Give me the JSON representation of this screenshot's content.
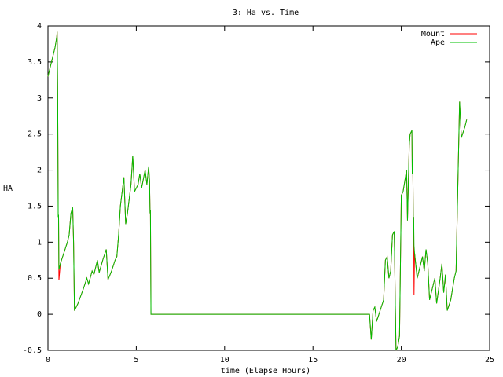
{
  "chart_data": {
    "type": "line",
    "title": "3: Ha vs. Time",
    "xlabel": "time (Elapse Hours)",
    "ylabel": "HA",
    "x": [
      0,
      0.2,
      0.4,
      0.5,
      0.52,
      0.55,
      0.58,
      0.6,
      0.62,
      0.7,
      0.9,
      1.1,
      1.2,
      1.3,
      1.4,
      1.45,
      1.5,
      1.7,
      2.0,
      2.2,
      2.3,
      2.5,
      2.6,
      2.8,
      2.9,
      3.1,
      3.3,
      3.4,
      3.6,
      3.8,
      3.9,
      4.0,
      4.1,
      4.3,
      4.4,
      4.5,
      4.7,
      4.8,
      4.9,
      5.1,
      5.2,
      5.3,
      5.5,
      5.6,
      5.7,
      5.75,
      5.78,
      5.8,
      5.83,
      18.2,
      18.3,
      18.4,
      18.5,
      18.6,
      18.8,
      19.0,
      19.1,
      19.2,
      19.3,
      19.4,
      19.5,
      19.6,
      19.7,
      19.8,
      19.9,
      20.0,
      20.1,
      20.3,
      20.35,
      20.45,
      20.5,
      20.6,
      20.62,
      20.65,
      20.68,
      20.7,
      20.72,
      20.75,
      20.9,
      21.1,
      21.2,
      21.3,
      21.4,
      21.5,
      21.6,
      21.8,
      21.9,
      22.0,
      22.2,
      22.3,
      22.4,
      22.5,
      22.6,
      22.8,
      22.9,
      23.0,
      23.1,
      23.3,
      23.4,
      23.6,
      23.7
    ],
    "series": [
      {
        "name": "Mount",
        "color": "#ff0000",
        "values": [
          3.3,
          3.5,
          3.7,
          3.85,
          3.92,
          3.05,
          1.35,
          1.38,
          0.47,
          0.7,
          0.85,
          1.0,
          1.1,
          1.4,
          1.48,
          1.0,
          0.05,
          0.15,
          0.35,
          0.5,
          0.42,
          0.6,
          0.55,
          0.75,
          0.58,
          0.75,
          0.9,
          0.48,
          0.6,
          0.75,
          0.8,
          1.1,
          1.5,
          1.9,
          1.25,
          1.4,
          1.8,
          2.2,
          1.7,
          1.8,
          1.95,
          1.75,
          2.0,
          1.8,
          2.05,
          1.85,
          1.4,
          1.45,
          0,
          0,
          -0.35,
          0.05,
          0.1,
          -0.1,
          0.05,
          0.2,
          0.75,
          0.8,
          0.5,
          0.6,
          1.1,
          1.15,
          -0.5,
          -0.45,
          -0.3,
          1.65,
          1.7,
          2.0,
          1.3,
          2.35,
          2.5,
          2.55,
          1.95,
          2.15,
          1.3,
          1.35,
          0.27,
          0.85,
          0.5,
          0.7,
          0.8,
          0.6,
          0.9,
          0.7,
          0.2,
          0.4,
          0.5,
          0.15,
          0.5,
          0.7,
          0.3,
          0.55,
          0.05,
          0.2,
          0.35,
          0.5,
          0.6,
          2.95,
          2.45,
          2.6,
          2.7
        ]
      },
      {
        "name": "Ape",
        "color": "#00c000",
        "values": [
          3.3,
          3.5,
          3.7,
          3.85,
          3.92,
          3.05,
          1.35,
          1.38,
          0.62,
          0.7,
          0.85,
          1.0,
          1.1,
          1.4,
          1.48,
          1.0,
          0.05,
          0.15,
          0.35,
          0.5,
          0.42,
          0.6,
          0.55,
          0.75,
          0.58,
          0.75,
          0.9,
          0.48,
          0.6,
          0.75,
          0.8,
          1.1,
          1.5,
          1.9,
          1.25,
          1.4,
          1.8,
          2.2,
          1.7,
          1.8,
          1.95,
          1.75,
          2.0,
          1.8,
          2.05,
          1.85,
          1.4,
          1.45,
          0,
          0,
          -0.35,
          0.05,
          0.1,
          -0.1,
          0.05,
          0.2,
          0.75,
          0.8,
          0.5,
          0.6,
          1.1,
          1.15,
          -0.5,
          -0.45,
          -0.3,
          1.65,
          1.7,
          2.0,
          1.3,
          2.35,
          2.5,
          2.55,
          1.95,
          2.15,
          1.3,
          1.35,
          0.95,
          0.85,
          0.5,
          0.7,
          0.8,
          0.6,
          0.9,
          0.7,
          0.2,
          0.4,
          0.5,
          0.15,
          0.5,
          0.7,
          0.3,
          0.55,
          0.05,
          0.2,
          0.35,
          0.5,
          0.6,
          2.95,
          2.45,
          2.6,
          2.7
        ]
      }
    ],
    "xlim": [
      0,
      25
    ],
    "xticks": [
      0,
      5,
      10,
      15,
      20,
      25
    ],
    "ylim": [
      -0.5,
      4
    ],
    "yticks": [
      -0.5,
      0,
      0.5,
      1,
      1.5,
      2,
      2.5,
      3,
      3.5,
      4
    ],
    "legend": "top-right"
  }
}
